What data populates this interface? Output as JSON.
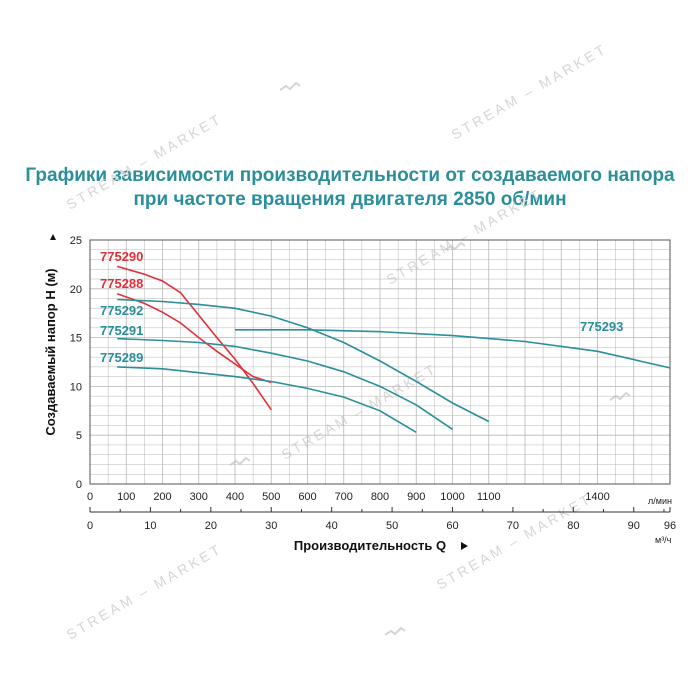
{
  "title": {
    "line1": "Графики зависимости производительности от создаваемого напора",
    "line2": "при частоте вращения двигателя 2850 об/мин"
  },
  "watermark": "STREAM – MARKET",
  "chart_data": {
    "type": "line",
    "ylabel": "Создаваемый напор Н (м)",
    "xlabel": "Производительность Q",
    "x_unit_top": "л/мин",
    "x_unit_bottom": "м³/ч",
    "ylim": [
      0,
      25
    ],
    "yticks": [
      "0",
      "5",
      "10",
      "15",
      "20",
      "25"
    ],
    "xlim_lmin": [
      0,
      1600
    ],
    "xticks_lmin": [
      "0",
      "100",
      "200",
      "300",
      "400",
      "500",
      "600",
      "700",
      "800",
      "900",
      "1000",
      "1100",
      "1400"
    ],
    "xlim_m3h": [
      0,
      96
    ],
    "xticks_m3h": [
      "0",
      "10",
      "20",
      "30",
      "40",
      "50",
      "60",
      "70",
      "80",
      "90",
      "96"
    ],
    "grid": true,
    "colors": {
      "red": "#e0303a",
      "teal": "#2a8f9b"
    },
    "series": [
      {
        "name": "775290",
        "color": "#e0303a",
        "x": [
          75,
          150,
          200,
          250,
          300,
          350,
          400,
          450,
          500
        ],
        "y": [
          22.3,
          21.5,
          20.8,
          19.6,
          17.3,
          15.0,
          12.8,
          10.3,
          7.6
        ]
      },
      {
        "name": "775288",
        "color": "#e0303a",
        "x": [
          75,
          150,
          200,
          250,
          300,
          350,
          400,
          450,
          500
        ],
        "y": [
          19.5,
          18.5,
          17.6,
          16.5,
          15.0,
          13.6,
          12.3,
          11.0,
          10.4
        ]
      },
      {
        "name": "775292",
        "color": "#2a8f9b",
        "x": [
          75,
          200,
          300,
          400,
          500,
          600,
          700,
          800,
          900,
          1000,
          1100
        ],
        "y": [
          18.9,
          18.7,
          18.4,
          18.0,
          17.2,
          16.0,
          14.5,
          12.6,
          10.5,
          8.3,
          6.4
        ]
      },
      {
        "name": "775291",
        "color": "#2a8f9b",
        "x": [
          75,
          200,
          300,
          400,
          500,
          600,
          700,
          800,
          900,
          1000
        ],
        "y": [
          14.9,
          14.7,
          14.5,
          14.1,
          13.4,
          12.6,
          11.5,
          10.0,
          8.1,
          5.6
        ]
      },
      {
        "name": "775289",
        "color": "#2a8f9b",
        "x": [
          75,
          200,
          300,
          400,
          500,
          600,
          700,
          800,
          900
        ],
        "y": [
          12.0,
          11.8,
          11.4,
          11.0,
          10.5,
          9.8,
          8.9,
          7.5,
          5.3
        ]
      },
      {
        "name": "775293",
        "color": "#2a8f9b",
        "x": [
          400,
          600,
          800,
          1000,
          1200,
          1400,
          1600
        ],
        "y": [
          15.8,
          15.8,
          15.6,
          15.2,
          14.6,
          13.6,
          11.9
        ]
      }
    ]
  }
}
